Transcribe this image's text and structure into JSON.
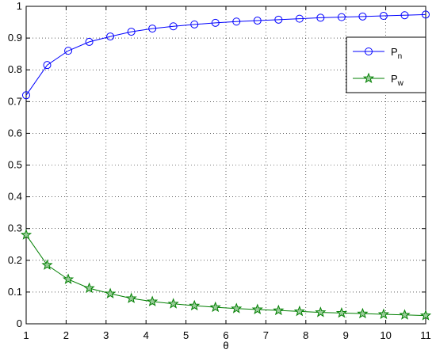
{
  "chart_data": {
    "type": "line",
    "x_label": "θ",
    "x": [
      1,
      1.526,
      2.053,
      2.579,
      3.105,
      3.632,
      4.158,
      4.684,
      5.211,
      5.737,
      6.263,
      6.789,
      7.316,
      7.842,
      8.368,
      8.895,
      9.421,
      9.947,
      10.474,
      11
    ],
    "series": [
      {
        "name": "P",
        "name_sub": "n",
        "color": "#0000ff",
        "marker": "circle",
        "values": [
          0.72,
          0.815,
          0.86,
          0.888,
          0.905,
          0.92,
          0.93,
          0.937,
          0.943,
          0.948,
          0.952,
          0.955,
          0.958,
          0.961,
          0.964,
          0.966,
          0.968,
          0.97,
          0.972,
          0.974
        ]
      },
      {
        "name": "P",
        "name_sub": "w",
        "color": "#007f00",
        "marker": "star",
        "values": [
          0.28,
          0.185,
          0.14,
          0.112,
          0.095,
          0.08,
          0.07,
          0.063,
          0.057,
          0.052,
          0.048,
          0.045,
          0.042,
          0.039,
          0.036,
          0.034,
          0.032,
          0.03,
          0.028,
          0.026
        ]
      }
    ],
    "xlim": [
      1,
      11
    ],
    "xticks": [
      1,
      2,
      3,
      4,
      5,
      6,
      7,
      8,
      9,
      10,
      11
    ],
    "ylim": [
      0,
      1
    ],
    "yticks": [
      0,
      0.1,
      0.2,
      0.3,
      0.4,
      0.5,
      0.6,
      0.7,
      0.8,
      0.9,
      1
    ],
    "grid": true,
    "legend": "upper right"
  }
}
